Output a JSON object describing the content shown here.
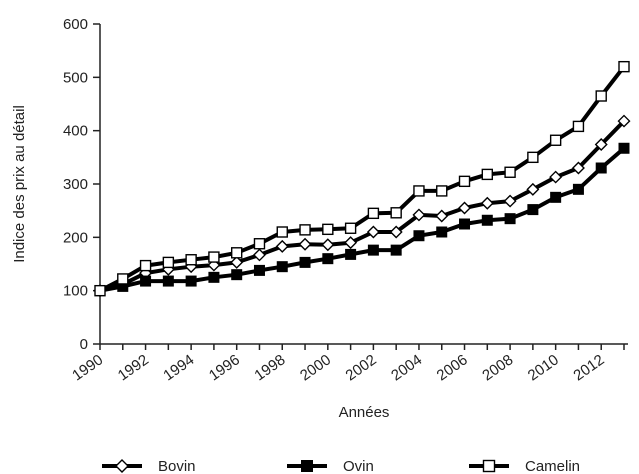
{
  "chart_data": {
    "type": "line",
    "xlabel": "Années",
    "ylabel": "Indice des prix au détail",
    "xlim": [
      1990,
      2013
    ],
    "ylim": [
      0,
      600
    ],
    "y_ticks": [
      "0",
      "100",
      "200",
      "300",
      "400",
      "500",
      "600"
    ],
    "x_ticks": [
      "1990",
      "1992",
      "1994",
      "1996",
      "1998",
      "2000",
      "2002",
      "2004",
      "2006",
      "2008",
      "2010",
      "2012"
    ],
    "x": [
      1990,
      1991,
      1992,
      1993,
      1994,
      1995,
      1996,
      1997,
      1998,
      1999,
      2000,
      2001,
      2002,
      2003,
      2004,
      2005,
      2006,
      2007,
      2008,
      2009,
      2010,
      2011,
      2012,
      2013
    ],
    "grid": false,
    "legend_position": "bottom",
    "series": [
      {
        "name": "Bovin",
        "marker": "open-diamond",
        "values": [
          100,
          112,
          133,
          140,
          145,
          148,
          153,
          167,
          183,
          187,
          186,
          190,
          210,
          210,
          242,
          240,
          255,
          264,
          268,
          290,
          313,
          330,
          374,
          418
        ]
      },
      {
        "name": "Ovin",
        "marker": "filled-square",
        "values": [
          100,
          108,
          118,
          118,
          118,
          125,
          130,
          138,
          145,
          153,
          160,
          168,
          176,
          176,
          203,
          210,
          225,
          232,
          235,
          252,
          275,
          290,
          330,
          367
        ]
      },
      {
        "name": "Camelin",
        "marker": "open-square",
        "values": [
          100,
          122,
          147,
          153,
          158,
          163,
          171,
          188,
          210,
          214,
          215,
          217,
          245,
          246,
          287,
          287,
          305,
          318,
          322,
          350,
          382,
          408,
          465,
          520
        ]
      }
    ]
  }
}
